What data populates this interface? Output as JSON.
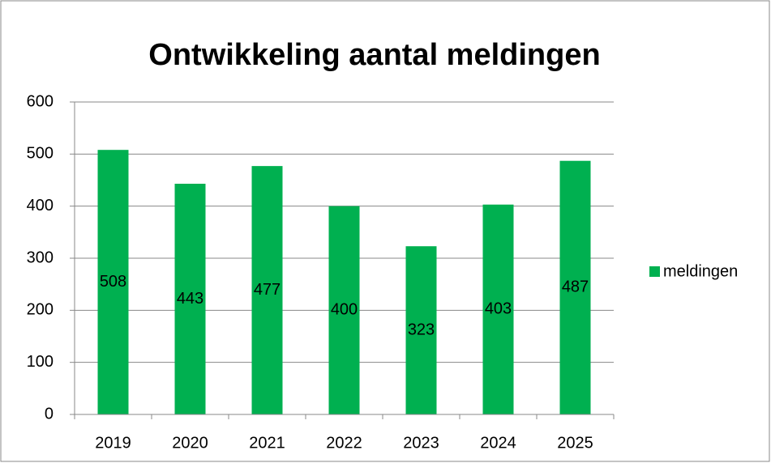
{
  "chart_data": {
    "type": "bar",
    "title": "Ontwikkeling aantal meldingen",
    "categories": [
      "2019",
      "2020",
      "2021",
      "2022",
      "2023",
      "2024",
      "2025"
    ],
    "series": [
      {
        "name": "meldingen",
        "color": "#00b050",
        "values": [
          508,
          443,
          477,
          400,
          323,
          403,
          487
        ]
      }
    ],
    "ylim": [
      0,
      600
    ],
    "yticks": [
      0,
      100,
      200,
      300,
      400,
      500,
      600
    ],
    "grid": true,
    "legend": "right"
  }
}
